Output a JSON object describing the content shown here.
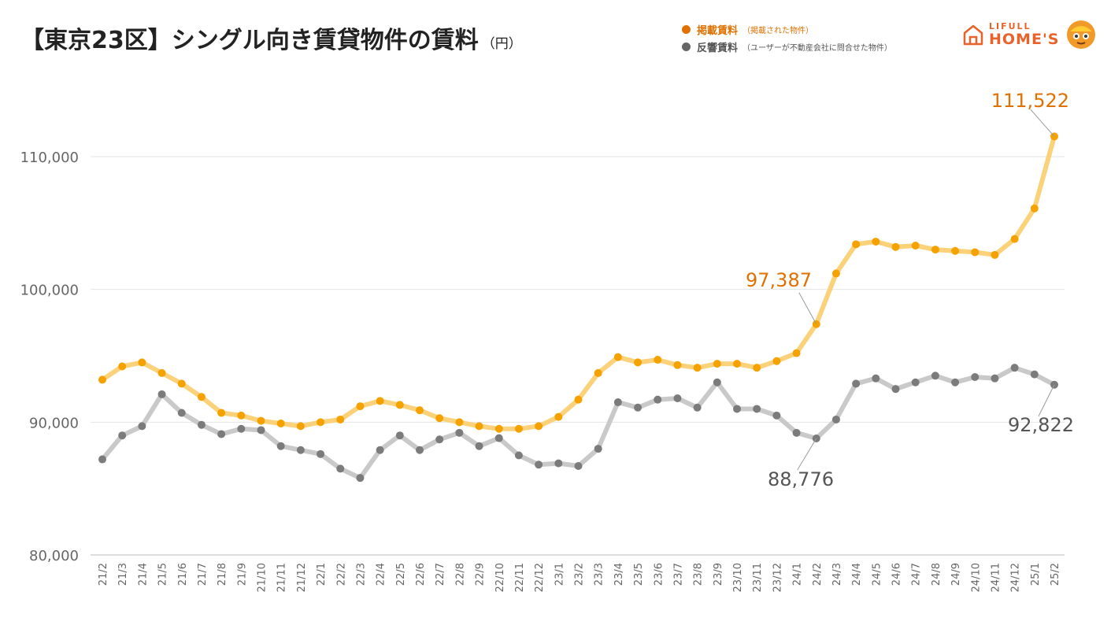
{
  "header": {
    "title": "【東京23区】シングル向き賃貸物件の賃料",
    "unit": "（円）"
  },
  "legend": [
    {
      "label": "掲載賃料",
      "note": "（掲載された物件）",
      "color": "#e07000"
    },
    {
      "label": "反響賃料",
      "note": "（ユーザーが不動産会社に問合せた物件）",
      "color": "#666666"
    }
  ],
  "logo": {
    "line1": "LIFULL",
    "line2": "HOME'S"
  },
  "chart_data": {
    "type": "line",
    "title": "【東京23区】シングル向き賃貸物件の賃料",
    "ylabel": "（円）",
    "ylim": [
      80000,
      115000
    ],
    "yticks": [
      80000,
      90000,
      100000,
      110000
    ],
    "ytick_labels": [
      "80,000",
      "90,000",
      "100,000",
      "110,000"
    ],
    "grid": true,
    "categories": [
      "21/2",
      "21/3",
      "21/4",
      "21/5",
      "21/6",
      "21/7",
      "21/8",
      "21/9",
      "21/10",
      "21/11",
      "21/12",
      "22/1",
      "22/2",
      "22/3",
      "22/4",
      "22/5",
      "22/6",
      "22/7",
      "22/8",
      "22/9",
      "22/10",
      "22/11",
      "22/12",
      "23/1",
      "23/2",
      "23/3",
      "23/4",
      "23/5",
      "23/6",
      "23/7",
      "23/8",
      "23/9",
      "23/10",
      "23/11",
      "23/12",
      "24/1",
      "24/2",
      "24/3",
      "24/4",
      "24/5",
      "24/6",
      "24/7",
      "24/8",
      "24/9",
      "24/10",
      "24/11",
      "24/12",
      "25/1",
      "25/2"
    ],
    "series": [
      {
        "name": "掲載賃料",
        "line_color": "#fbd27a",
        "marker_color": "#f5a200",
        "values": [
          93200,
          94200,
          94500,
          93700,
          92900,
          91900,
          90700,
          90500,
          90100,
          89900,
          89700,
          90000,
          90200,
          91200,
          91600,
          91300,
          90900,
          90300,
          90000,
          89700,
          89500,
          89500,
          89700,
          90400,
          91700,
          93700,
          94900,
          94500,
          94700,
          94300,
          94100,
          94400,
          94400,
          94100,
          94600,
          95200,
          97387,
          101200,
          103400,
          103600,
          103200,
          103300,
          103000,
          102900,
          102800,
          102600,
          103800,
          106100,
          111522
        ]
      },
      {
        "name": "反響賃料",
        "line_color": "#c9c9c9",
        "marker_color": "#7b7b7b",
        "values": [
          87200,
          89000,
          89700,
          92100,
          90700,
          89800,
          89100,
          89500,
          89400,
          88200,
          87900,
          87600,
          86500,
          85800,
          87900,
          89000,
          87900,
          88700,
          89200,
          88200,
          88800,
          87500,
          86800,
          86900,
          86700,
          88000,
          91500,
          91100,
          91700,
          91800,
          91100,
          93000,
          91000,
          91000,
          90500,
          89200,
          88776,
          90200,
          92900,
          93300,
          92500,
          93000,
          93500,
          93000,
          93400,
          93300,
          94100,
          93600,
          92822
        ]
      }
    ],
    "annotations": [
      {
        "series": 0,
        "index": 36,
        "text": "97,387",
        "color": "#e07000"
      },
      {
        "series": 0,
        "index": 48,
        "text": "111,522",
        "color": "#e07000"
      },
      {
        "series": 1,
        "index": 36,
        "text": "88,776",
        "color": "#555555"
      },
      {
        "series": 1,
        "index": 48,
        "text": "92,822",
        "color": "#555555"
      }
    ]
  }
}
